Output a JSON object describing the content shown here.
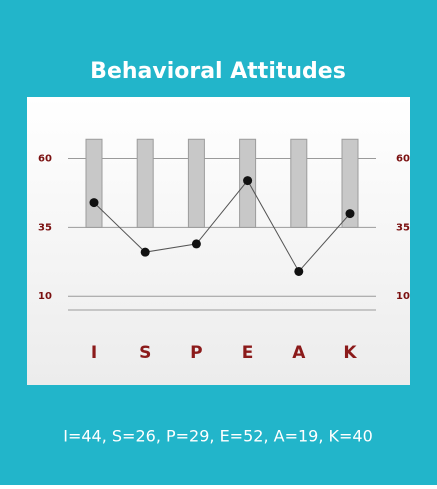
{
  "chart_data": {
    "type": "line",
    "title": "Behavioral Attitudes",
    "categories": [
      "I",
      "S",
      "P",
      "E",
      "A",
      "K"
    ],
    "values": [
      44,
      26,
      29,
      52,
      19,
      40
    ],
    "color": "#111111",
    "line_color": "#555555",
    "band_range": [
      35,
      67
    ],
    "band_color": "#c8c8c8",
    "ylim": [
      5,
      70
    ],
    "yticks": [
      60,
      35,
      10
    ],
    "grid": true,
    "caption": "I=44, S=26, P=29, E=52, A=19, K=40"
  }
}
